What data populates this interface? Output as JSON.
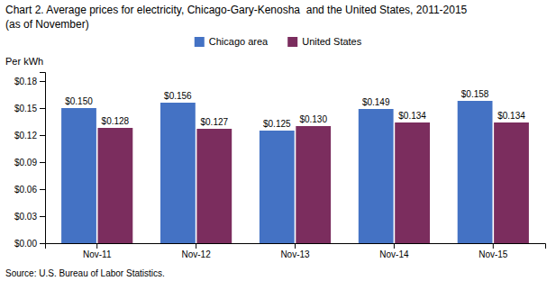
{
  "chart_data": {
    "type": "bar",
    "title": "Chart 2. Average prices for electricity, Chicago-Gary-Kenosha  and the United States, 2011-2015",
    "subtitle": "(as of November)",
    "ylabel": "Per kWh",
    "source": "Source: U.S. Bureau of Labor Statistics.",
    "categories": [
      "Nov-11",
      "Nov-12",
      "Nov-13",
      "Nov-14",
      "Nov-15"
    ],
    "series": [
      {
        "name": "Chicago area",
        "color": "#4472C4",
        "values": [
          0.15,
          0.156,
          0.125,
          0.149,
          0.158
        ],
        "value_labels": [
          "$0.150",
          "$0.156",
          "$0.125",
          "$0.149",
          "$0.158"
        ]
      },
      {
        "name": "United States",
        "color": "#7B2D5E",
        "values": [
          0.128,
          0.127,
          0.13,
          0.134,
          0.134
        ],
        "value_labels": [
          "$0.128",
          "$0.127",
          "$0.130",
          "$0.134",
          "$0.134"
        ]
      }
    ],
    "ylim": [
      0,
      0.19
    ],
    "yticks": [
      {
        "value": 0.0,
        "label": "$0.00"
      },
      {
        "value": 0.03,
        "label": "$0.03"
      },
      {
        "value": 0.06,
        "label": "$0.06"
      },
      {
        "value": 0.09,
        "label": "$0.09"
      },
      {
        "value": 0.12,
        "label": "$0.12"
      },
      {
        "value": 0.15,
        "label": "$0.15"
      },
      {
        "value": 0.18,
        "label": "$0.18"
      }
    ],
    "data_labels": true,
    "legend": "top",
    "grid": false
  }
}
